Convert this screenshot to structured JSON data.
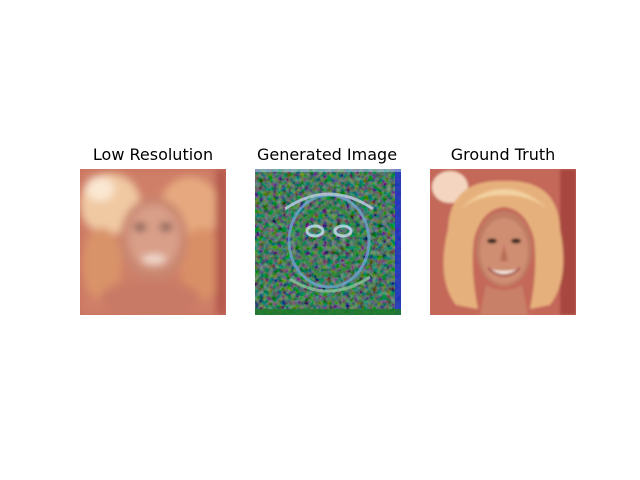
{
  "figure": {
    "panels": [
      {
        "title": "Low Resolution"
      },
      {
        "title": "Generated Image"
      },
      {
        "title": "Ground Truth"
      }
    ]
  }
}
